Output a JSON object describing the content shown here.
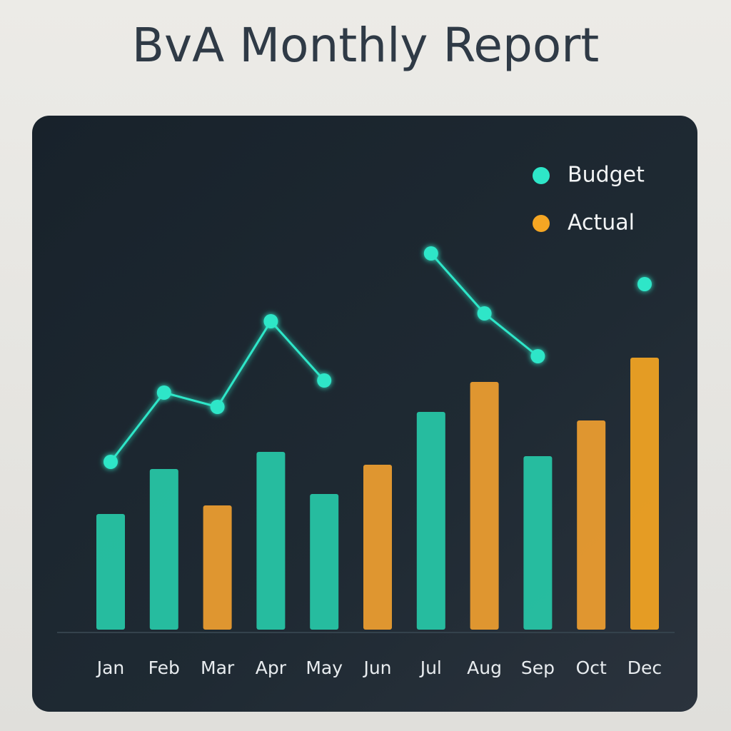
{
  "chart_data": {
    "type": "bar-line",
    "title": "BvA Monthly Report",
    "categories": [
      "Jan",
      "Feb",
      "Mar",
      "Apr",
      "May",
      "Jun",
      "Jul",
      "Aug",
      "Sep",
      "Oct",
      "Dec"
    ],
    "series": [
      {
        "name": "Budget",
        "color": "#2ee6c8",
        "type": "line",
        "values": [
          235,
          332,
          312,
          432,
          349,
          null,
          527,
          443,
          383,
          null,
          484
        ]
      },
      {
        "name": "Actual",
        "color": "#f5a623",
        "type": "bar",
        "values": [
          162,
          225,
          174,
          249,
          190,
          231,
          305,
          347,
          243,
          293,
          381
        ],
        "colors": [
          "#27c9a8",
          "#27c9a8",
          "#f0a030",
          "#27c9a8",
          "#27c9a8",
          "#f0a030",
          "#27c9a8",
          "#f0a030",
          "#27c9a8",
          "#f0a030",
          "#f5a623"
        ]
      }
    ]
  }
}
